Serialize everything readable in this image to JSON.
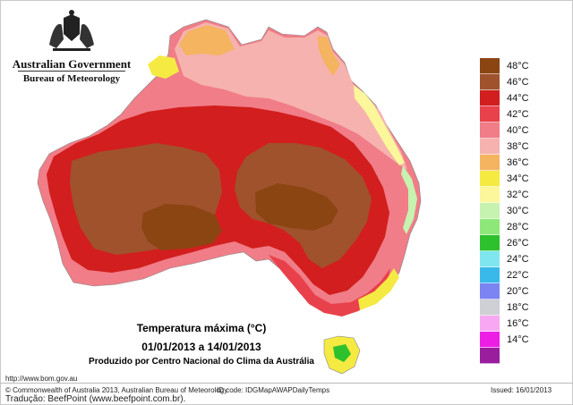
{
  "header": {
    "org": "Australian Government",
    "bureau": "Bureau of Meteorology"
  },
  "map": {
    "title": "Temperatura máxima (°C)",
    "period": "01/01/2013 a 14/01/2013",
    "producer": "Produzido por Centro Nacional do Clima da Austrália"
  },
  "legend": {
    "items": [
      {
        "label": "48°C",
        "color": "#8b4513"
      },
      {
        "label": "46°C",
        "color": "#a0522d"
      },
      {
        "label": "44°C",
        "color": "#d21e1e"
      },
      {
        "label": "42°C",
        "color": "#e8414b"
      },
      {
        "label": "40°C",
        "color": "#f07d87"
      },
      {
        "label": "38°C",
        "color": "#f6b2ae"
      },
      {
        "label": "36°C",
        "color": "#f4b460"
      },
      {
        "label": "34°C",
        "color": "#f5ea42"
      },
      {
        "label": "32°C",
        "color": "#fbf79a"
      },
      {
        "label": "30°C",
        "color": "#c6f3b0"
      },
      {
        "label": "28°C",
        "color": "#8ee879"
      },
      {
        "label": "26°C",
        "color": "#2dc12d"
      },
      {
        "label": "24°C",
        "color": "#7fe6f0"
      },
      {
        "label": "22°C",
        "color": "#39b9ea"
      },
      {
        "label": "20°C",
        "color": "#7b84f2"
      },
      {
        "label": "18°C",
        "color": "#cfcfd6"
      },
      {
        "label": "16°C",
        "color": "#f8a8f2"
      },
      {
        "label": "14°C",
        "color": "#ec1ee6"
      },
      {
        "label": "",
        "color": "#9a1d9e"
      }
    ]
  },
  "footer": {
    "url": "http://www.bom.gov.au",
    "copyright": "© Commonwealth of Australia 2013, Australian Bureau of Meteorology",
    "id_code": "ID code: IDGMapAWAPDailyTemps",
    "issued": "Issued: 16/01/2013",
    "translation": "Tradução: BeefPoint (www.beefpoint.com.br)."
  }
}
